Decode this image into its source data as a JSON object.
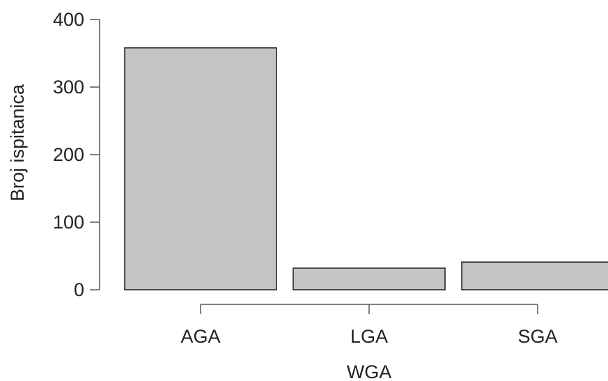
{
  "chart_data": {
    "type": "bar",
    "title": "",
    "xlabel": "WGA",
    "ylabel": "Broj ispitanica",
    "categories": [
      "AGA",
      "LGA",
      "SGA"
    ],
    "values": [
      358,
      32,
      41
    ],
    "ylim": [
      0,
      400
    ],
    "yticks": [
      0,
      100,
      200,
      300,
      400
    ],
    "grid": false,
    "legend": "none",
    "colors": {
      "bar_fill": "#c4c4c4",
      "bar_stroke": "#1a1a1a",
      "axis": "#555555",
      "text": "#222222"
    }
  }
}
